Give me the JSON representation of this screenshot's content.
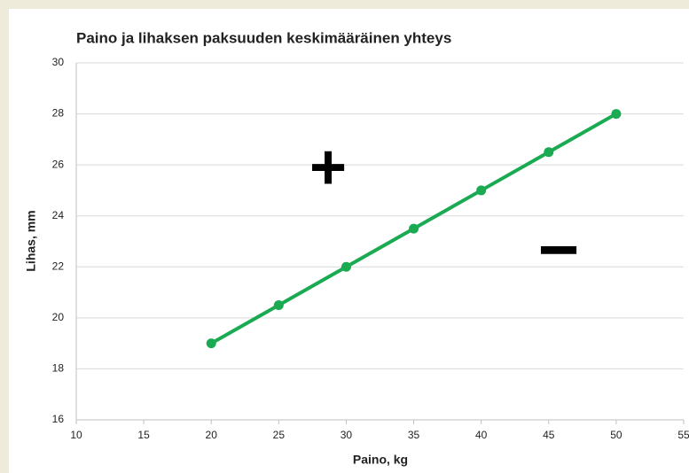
{
  "chart_data": {
    "type": "line",
    "title": "Paino ja lihaksen paksuuden keskimääräinen yhteys",
    "x_label": "Paino, kg",
    "y_label": "Lihas, mm",
    "x": [
      20,
      25,
      30,
      35,
      40,
      45,
      50
    ],
    "series": [
      {
        "name": "Lihas",
        "color": "#1aab52",
        "values": [
          19,
          20.5,
          22,
          23.5,
          25,
          26.5,
          28
        ]
      }
    ],
    "xlim": [
      10,
      55
    ],
    "xticks": [
      10,
      15,
      20,
      25,
      30,
      35,
      40,
      45,
      50,
      55
    ],
    "ylim": [
      16,
      30
    ],
    "yticks": [
      16,
      18,
      20,
      22,
      24,
      26,
      28,
      30
    ],
    "grid": true,
    "annotations": [
      "+",
      "−"
    ]
  }
}
